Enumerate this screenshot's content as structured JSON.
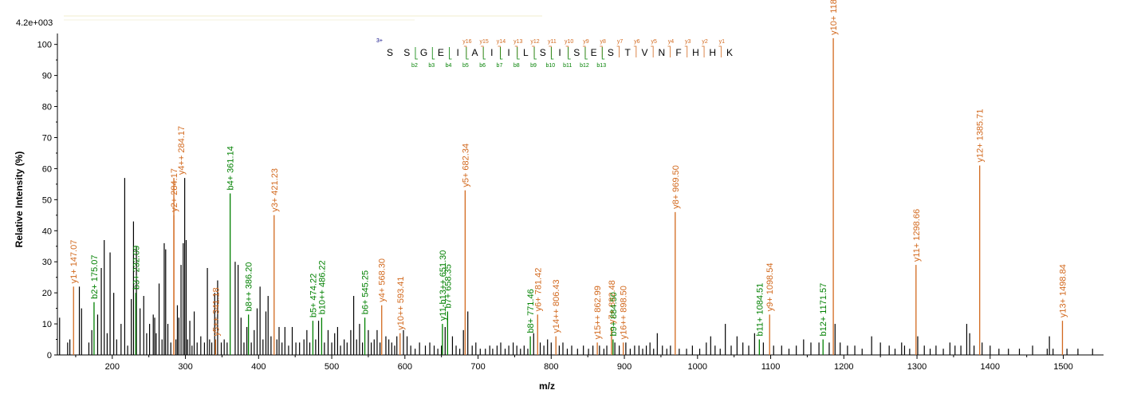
{
  "chart_data": {
    "type": "bar",
    "subtype": "mass-spectrum",
    "intensity_scale": "4.2e+003",
    "xlabel": "m/z",
    "ylabel": "Relative   Intensity (%)",
    "xlim": [
      125,
      1555
    ],
    "ylim": [
      0,
      103
    ],
    "x_ticks": [
      200,
      300,
      400,
      500,
      600,
      700,
      800,
      900,
      1000,
      1100,
      1200,
      1300,
      1400,
      1500
    ],
    "y_ticks": [
      0,
      10,
      20,
      30,
      40,
      50,
      60,
      70,
      80,
      90,
      100
    ],
    "colors": {
      "y_ion": "#d2691e",
      "b_ion": "#008000",
      "unassigned": "#000000"
    },
    "sequence": {
      "charge": "3+",
      "residues": [
        "S",
        "S",
        "G",
        "E",
        "I",
        "A",
        "I",
        "I",
        "L",
        "S",
        "I",
        "S",
        "E",
        "S",
        "T",
        "V",
        "N",
        "F",
        "H",
        "H",
        "K"
      ],
      "y_labels": [
        "y16",
        "y15",
        "y14",
        "y13",
        "y12",
        "y11",
        "y10",
        "y9",
        "y8",
        "y7",
        "y6",
        "y5",
        "y4",
        "y3",
        "y2",
        "y1"
      ],
      "b_labels": [
        "b2",
        "b3",
        "b4",
        "b5",
        "b6",
        "b7",
        "b8",
        "b9",
        "b10",
        "b11",
        "b12",
        "b13"
      ]
    },
    "labeled_peaks": [
      {
        "mz": 147.07,
        "intensity": 22,
        "ion": "y",
        "label": "y1+ 147.07"
      },
      {
        "mz": 175.07,
        "intensity": 17,
        "ion": "b",
        "label": "b2+ 175.07"
      },
      {
        "mz": 232.09,
        "intensity": 20,
        "ion": "b",
        "label": "b3+ 232.09"
      },
      {
        "mz": 284.17,
        "intensity": 45,
        "ion": "y",
        "label": "y2+ 284.17"
      },
      {
        "mz": 284.17,
        "intensity": 57,
        "ion": "y",
        "label": "y4++ 284.17"
      },
      {
        "mz": 341.18,
        "intensity": 5,
        "ion": "y",
        "label": "y5++ 341.18"
      },
      {
        "mz": 361.14,
        "intensity": 52,
        "ion": "b",
        "label": "b4+ 361.14"
      },
      {
        "mz": 386.2,
        "intensity": 13,
        "ion": "b",
        "label": "b8++ 386.20"
      },
      {
        "mz": 421.23,
        "intensity": 45,
        "ion": "y",
        "label": "y3+ 421.23"
      },
      {
        "mz": 474.22,
        "intensity": 11,
        "ion": "b",
        "label": "b5+ 474.22"
      },
      {
        "mz": 486.22,
        "intensity": 12,
        "ion": "b",
        "label": "b10++ 486.22"
      },
      {
        "mz": 545.25,
        "intensity": 12,
        "ion": "b",
        "label": "b6+ 545.25"
      },
      {
        "mz": 568.3,
        "intensity": 16,
        "ion": "y",
        "label": "y4+ 568.30"
      },
      {
        "mz": 593.41,
        "intensity": 7,
        "ion": "y",
        "label": "y10++ 593.41"
      },
      {
        "mz": 651.3,
        "intensity": 10,
        "ion": "b",
        "label": "y11-b13++ 651.30"
      },
      {
        "mz": 658.35,
        "intensity": 14,
        "ion": "b",
        "label": "b7+ 658.35"
      },
      {
        "mz": 682.34,
        "intensity": 53,
        "ion": "y",
        "label": "y5+ 682.34"
      },
      {
        "mz": 771.46,
        "intensity": 6,
        "ion": "b",
        "label": "b8+ 771.46"
      },
      {
        "mz": 781.42,
        "intensity": 13,
        "ion": "y",
        "label": "y6+ 781.42"
      },
      {
        "mz": 806.43,
        "intensity": 6,
        "ion": "y",
        "label": "y14++ 806.43"
      },
      {
        "mz": 862.99,
        "intensity": 4,
        "ion": "y",
        "label": "y15++ 862.99"
      },
      {
        "mz": 882.48,
        "intensity": 9,
        "ion": "y",
        "label": "y7+ 882.48"
      },
      {
        "mz": 884.5,
        "intensity": 5,
        "ion": "b",
        "label": "b9+ 884.50"
      },
      {
        "mz": 898.5,
        "intensity": 4,
        "ion": "y",
        "label": "y16++ 898.50"
      },
      {
        "mz": 969.5,
        "intensity": 46,
        "ion": "y",
        "label": "y8+ 969.50"
      },
      {
        "mz": 1084.51,
        "intensity": 5,
        "ion": "b",
        "label": "b11+ 1084.51"
      },
      {
        "mz": 1098.54,
        "intensity": 13,
        "ion": "y",
        "label": "y9+ 1098.54"
      },
      {
        "mz": 1171.57,
        "intensity": 5,
        "ion": "b",
        "label": "b12+ 1171.57"
      },
      {
        "mz": 1185.6,
        "intensity": 102,
        "ion": "y",
        "label": "y10+ 1185.60"
      },
      {
        "mz": 1298.66,
        "intensity": 29,
        "ion": "y",
        "label": "y11+ 1298.66"
      },
      {
        "mz": 1385.71,
        "intensity": 61,
        "ion": "y",
        "label": "y12+ 1385.71"
      },
      {
        "mz": 1498.84,
        "intensity": 11,
        "ion": "y",
        "label": "y13+ 1498.84"
      }
    ],
    "unlabeled_peaks": [
      [
        128,
        12
      ],
      [
        139,
        4
      ],
      [
        142,
        5
      ],
      [
        155,
        22
      ],
      [
        158,
        15
      ],
      [
        168,
        4
      ],
      [
        172,
        8
      ],
      [
        180,
        13
      ],
      [
        185,
        28
      ],
      [
        189,
        37
      ],
      [
        193,
        7
      ],
      [
        197,
        33
      ],
      [
        202,
        20
      ],
      [
        206,
        5
      ],
      [
        212,
        10
      ],
      [
        217,
        57
      ],
      [
        221,
        3
      ],
      [
        226,
        18
      ],
      [
        229,
        43
      ],
      [
        233,
        35
      ],
      [
        238,
        15
      ],
      [
        243,
        19
      ],
      [
        247,
        7
      ],
      [
        251,
        10
      ],
      [
        256,
        13
      ],
      [
        258,
        12
      ],
      [
        260,
        7
      ],
      [
        264,
        23
      ],
      [
        268,
        5
      ],
      [
        271,
        36
      ],
      [
        273,
        34
      ],
      [
        276,
        10
      ],
      [
        280,
        4
      ],
      [
        287,
        5
      ],
      [
        289,
        16
      ],
      [
        291,
        12
      ],
      [
        294,
        29
      ],
      [
        297,
        36
      ],
      [
        299,
        57
      ],
      [
        301,
        37
      ],
      [
        303,
        5
      ],
      [
        306,
        11
      ],
      [
        309,
        3
      ],
      [
        312,
        14
      ],
      [
        316,
        4
      ],
      [
        321,
        6
      ],
      [
        326,
        4
      ],
      [
        330,
        28
      ],
      [
        333,
        5
      ],
      [
        336,
        4
      ],
      [
        340,
        20
      ],
      [
        344,
        24
      ],
      [
        349,
        4
      ],
      [
        353,
        5
      ],
      [
        357,
        4
      ],
      [
        368,
        30
      ],
      [
        372,
        29
      ],
      [
        376,
        12
      ],
      [
        380,
        4
      ],
      [
        384,
        9
      ],
      [
        390,
        4
      ],
      [
        394,
        8
      ],
      [
        398,
        15
      ],
      [
        402,
        22
      ],
      [
        406,
        5
      ],
      [
        410,
        14
      ],
      [
        413,
        19
      ],
      [
        417,
        6
      ],
      [
        425,
        5
      ],
      [
        428,
        9
      ],
      [
        432,
        4
      ],
      [
        436,
        9
      ],
      [
        441,
        3
      ],
      [
        446,
        9
      ],
      [
        451,
        4
      ],
      [
        456,
        4
      ],
      [
        462,
        5
      ],
      [
        466,
        8
      ],
      [
        470,
        4
      ],
      [
        478,
        5
      ],
      [
        482,
        11
      ],
      [
        490,
        4
      ],
      [
        495,
        8
      ],
      [
        500,
        4
      ],
      [
        504,
        7
      ],
      [
        508,
        9
      ],
      [
        512,
        3
      ],
      [
        517,
        5
      ],
      [
        521,
        4
      ],
      [
        526,
        8
      ],
      [
        530,
        19
      ],
      [
        534,
        5
      ],
      [
        538,
        10
      ],
      [
        542,
        4
      ],
      [
        550,
        8
      ],
      [
        554,
        4
      ],
      [
        558,
        5
      ],
      [
        562,
        8
      ],
      [
        566,
        4
      ],
      [
        574,
        6
      ],
      [
        578,
        5
      ],
      [
        582,
        4
      ],
      [
        586,
        3
      ],
      [
        589,
        6
      ],
      [
        598,
        8
      ],
      [
        603,
        6
      ],
      [
        608,
        3
      ],
      [
        614,
        2
      ],
      [
        620,
        4
      ],
      [
        628,
        3
      ],
      [
        634,
        4
      ],
      [
        640,
        3
      ],
      [
        645,
        2
      ],
      [
        650,
        3
      ],
      [
        655,
        9
      ],
      [
        665,
        6
      ],
      [
        670,
        3
      ],
      [
        675,
        2
      ],
      [
        680,
        8
      ],
      [
        686,
        14
      ],
      [
        692,
        3
      ],
      [
        697,
        4
      ],
      [
        703,
        2
      ],
      [
        710,
        2
      ],
      [
        716,
        3
      ],
      [
        720,
        2
      ],
      [
        726,
        3
      ],
      [
        731,
        4
      ],
      [
        737,
        2
      ],
      [
        742,
        3
      ],
      [
        748,
        4
      ],
      [
        753,
        3
      ],
      [
        758,
        2
      ],
      [
        763,
        3
      ],
      [
        768,
        2
      ],
      [
        776,
        7
      ],
      [
        785,
        4
      ],
      [
        790,
        3
      ],
      [
        795,
        5
      ],
      [
        800,
        4
      ],
      [
        811,
        3
      ],
      [
        816,
        4
      ],
      [
        822,
        2
      ],
      [
        828,
        3
      ],
      [
        836,
        2
      ],
      [
        844,
        3
      ],
      [
        851,
        2
      ],
      [
        857,
        3
      ],
      [
        866,
        3
      ],
      [
        872,
        2
      ],
      [
        876,
        3
      ],
      [
        887,
        4
      ],
      [
        893,
        3
      ],
      [
        902,
        4
      ],
      [
        908,
        2
      ],
      [
        914,
        3
      ],
      [
        920,
        3
      ],
      [
        925,
        2
      ],
      [
        930,
        3
      ],
      [
        935,
        4
      ],
      [
        940,
        2
      ],
      [
        945,
        7
      ],
      [
        952,
        3
      ],
      [
        958,
        2
      ],
      [
        963,
        3
      ],
      [
        975,
        2
      ],
      [
        985,
        2
      ],
      [
        993,
        3
      ],
      [
        1003,
        2
      ],
      [
        1012,
        4
      ],
      [
        1018,
        6
      ],
      [
        1024,
        3
      ],
      [
        1031,
        2
      ],
      [
        1038,
        10
      ],
      [
        1046,
        3
      ],
      [
        1054,
        6
      ],
      [
        1062,
        4
      ],
      [
        1070,
        3
      ],
      [
        1078,
        7
      ],
      [
        1090,
        4
      ],
      [
        1104,
        3
      ],
      [
        1115,
        3
      ],
      [
        1125,
        2
      ],
      [
        1135,
        3
      ],
      [
        1145,
        5
      ],
      [
        1155,
        4
      ],
      [
        1166,
        4
      ],
      [
        1180,
        4
      ],
      [
        1188,
        10
      ],
      [
        1195,
        4
      ],
      [
        1205,
        3
      ],
      [
        1215,
        3
      ],
      [
        1225,
        2
      ],
      [
        1238,
        6
      ],
      [
        1250,
        4
      ],
      [
        1262,
        3
      ],
      [
        1270,
        2
      ],
      [
        1279,
        4
      ],
      [
        1283,
        3
      ],
      [
        1290,
        2
      ],
      [
        1301,
        6
      ],
      [
        1310,
        3
      ],
      [
        1318,
        2
      ],
      [
        1326,
        3
      ],
      [
        1336,
        2
      ],
      [
        1345,
        4
      ],
      [
        1352,
        3
      ],
      [
        1360,
        3
      ],
      [
        1368,
        10
      ],
      [
        1372,
        7
      ],
      [
        1378,
        3
      ],
      [
        1389,
        4
      ],
      [
        1400,
        3
      ],
      [
        1412,
        2
      ],
      [
        1425,
        2
      ],
      [
        1440,
        2
      ],
      [
        1458,
        3
      ],
      [
        1478,
        2
      ],
      [
        1481,
        6
      ],
      [
        1486,
        2
      ],
      [
        1505,
        2
      ],
      [
        1520,
        2
      ],
      [
        1540,
        2
      ]
    ]
  }
}
